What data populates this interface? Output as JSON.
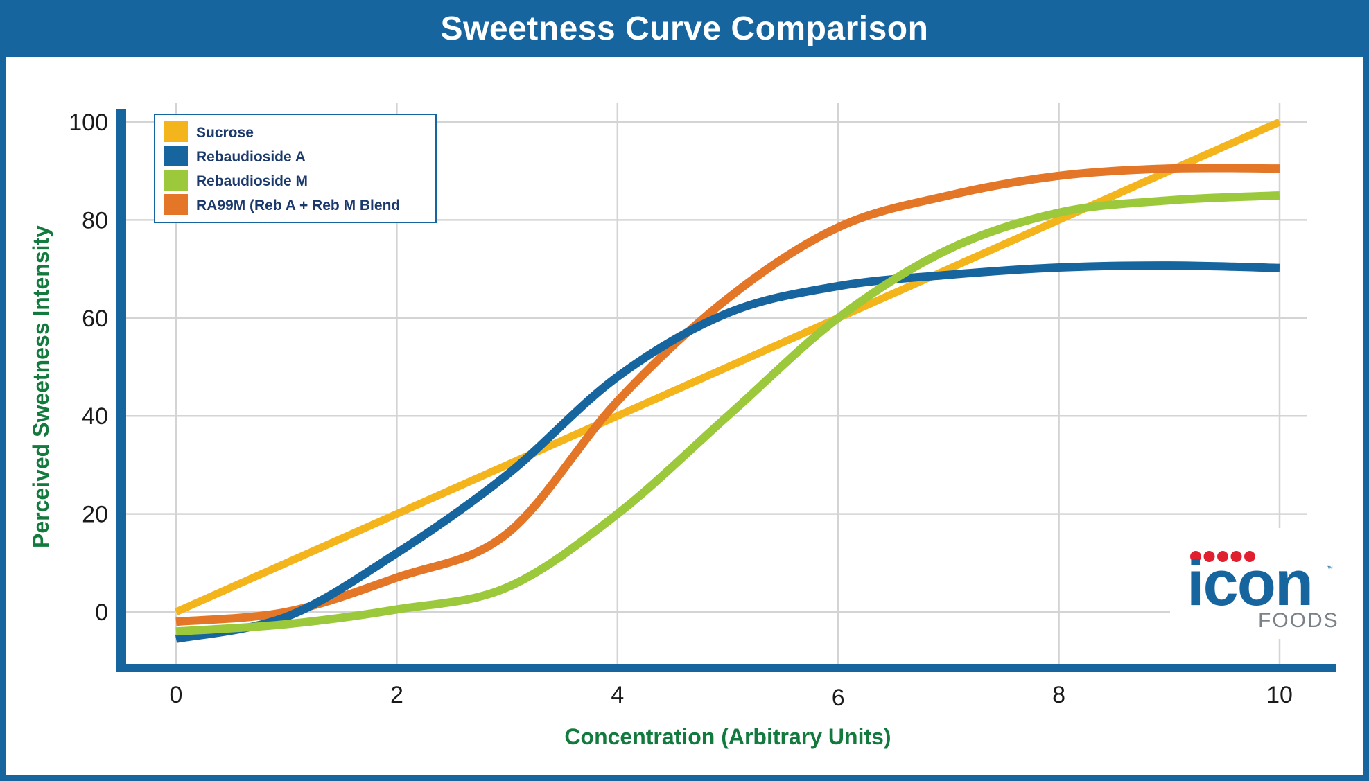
{
  "header": {
    "title": "Sweetness Curve Comparison"
  },
  "logo": {
    "word": "icon",
    "sub": "FOODS",
    "tm": "™",
    "dots_color": "#e0202e",
    "word_color": "#17659e",
    "sub_color": "#7a8288",
    "dot_count": 5
  },
  "colors": {
    "frame": "#17659e",
    "axis_title": "#137a3e",
    "grid": "#d4d4d4",
    "legend_text": "#1b3a6b"
  },
  "chart_data": {
    "type": "line",
    "title": "Sweetness Curve Comparison",
    "xlabel": "Concentration (Arbitrary Units)",
    "ylabel": "Perceived Sweetness Intensity",
    "xlim": [
      0,
      10
    ],
    "ylim": [
      -12,
      100
    ],
    "x_ticks": [
      0,
      2,
      4,
      6,
      8,
      10
    ],
    "y_ticks": [
      0,
      20,
      40,
      60,
      80,
      100
    ],
    "x_tick_labels": [
      "0",
      "2",
      "4",
      "6",
      "8",
      "10"
    ],
    "y_tick_labels": [
      "0",
      "20",
      "40",
      "60",
      "80",
      "100"
    ],
    "grid": true,
    "legend_position": "top-left",
    "x": [
      0,
      1,
      2,
      3,
      4,
      5,
      6,
      7,
      8,
      9,
      10
    ],
    "series": [
      {
        "name": "Sucrose",
        "color": "#f4b41c",
        "values": [
          0,
          10,
          20,
          30,
          40,
          50,
          60,
          70,
          80,
          90,
          100
        ]
      },
      {
        "name": "Rebaudioside A",
        "color": "#17659e",
        "values": [
          -5.5,
          -1,
          12,
          28,
          48,
          61,
          66.5,
          68.8,
          70.3,
          70.7,
          70.2
        ]
      },
      {
        "name": "Rebaudioside M",
        "color": "#9bc93b",
        "values": [
          -4,
          -2.5,
          0.5,
          5,
          20,
          40,
          60,
          74,
          81.5,
          84,
          85
        ]
      },
      {
        "name": "RA99M (Reb A + Reb M Blend",
        "color": "#e37627",
        "values": [
          -2,
          0,
          7,
          16,
          43,
          64,
          78.5,
          85,
          89,
          90.5,
          90.5
        ]
      }
    ]
  }
}
